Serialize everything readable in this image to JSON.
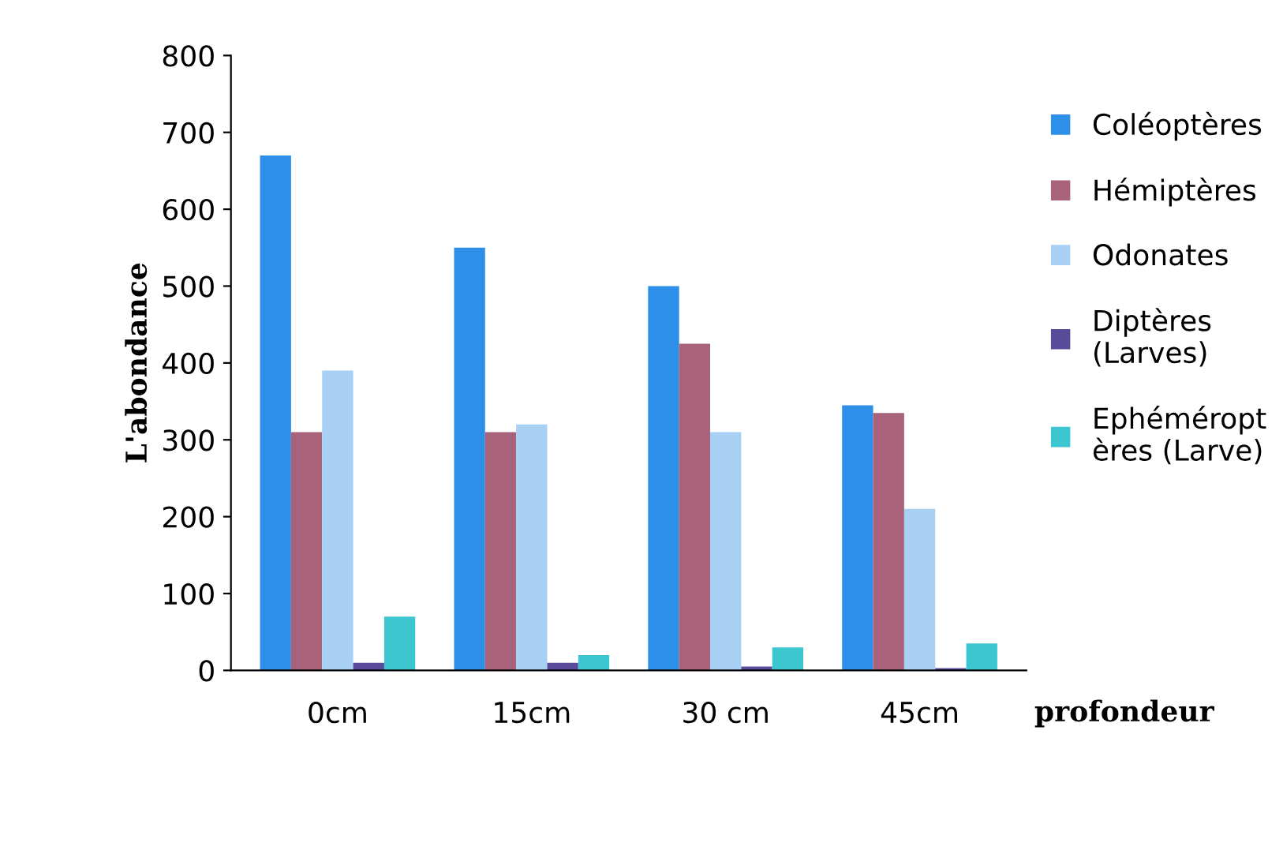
{
  "chart_data": {
    "type": "bar",
    "ylabel": "L'abondance",
    "xlabel": "profondeur",
    "categories": [
      "0cm",
      "15cm",
      "30 cm",
      "45cm"
    ],
    "series": [
      {
        "name": "Coléoptères",
        "color": "#2e8fe8",
        "values": [
          670,
          550,
          500,
          345
        ]
      },
      {
        "name": "Hémiptères",
        "color": "#a8637a",
        "values": [
          310,
          310,
          425,
          335
        ]
      },
      {
        "name": "Odonates",
        "color": "#a8d0f5",
        "values": [
          390,
          320,
          310,
          210
        ]
      },
      {
        "name": "Diptères\n(Larves)",
        "color": "#5a4a9a",
        "values": [
          10,
          10,
          5,
          3
        ]
      },
      {
        "name": "Ephéméropt\nères (Larve)",
        "color": "#3cc6d0",
        "values": [
          70,
          20,
          30,
          35
        ]
      }
    ],
    "ylim": [
      0,
      800
    ],
    "yticks": [
      0,
      100,
      200,
      300,
      400,
      500,
      600,
      700,
      800
    ],
    "legend": "right",
    "grid": false
  }
}
